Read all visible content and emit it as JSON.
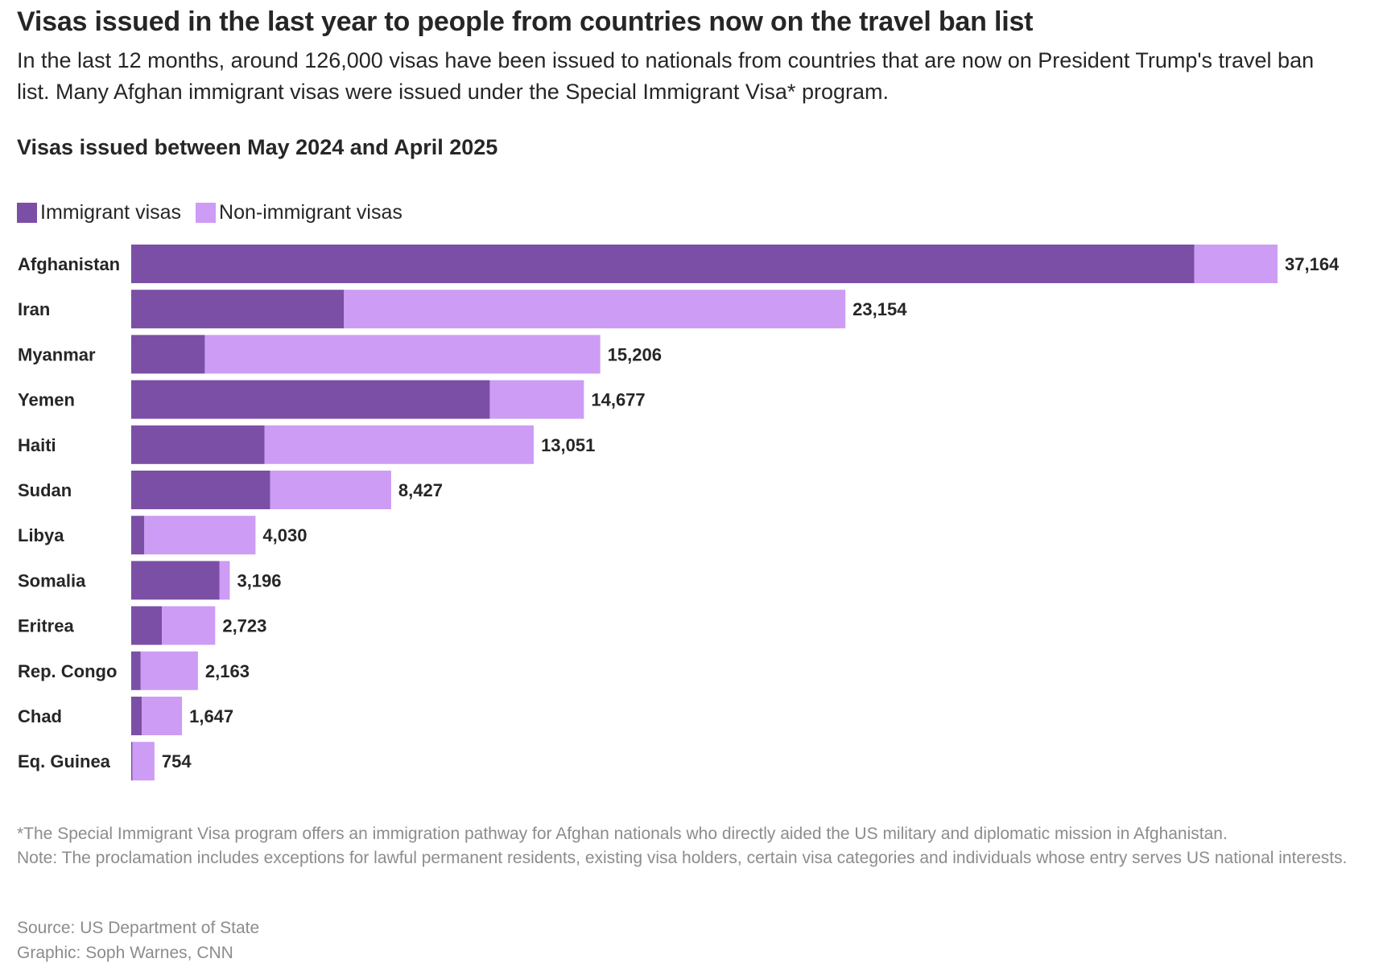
{
  "title": "Visas issued in the last year to people from countries now on the travel ban list",
  "subtitle": "In the last 12 months, around 126,000 visas have been issued to nationals from countries that are now on President Trump's travel ban list. Many Afghan immigrant visas were issued under the Special Immigrant Visa* program.",
  "chart_heading": "Visas issued between May 2024 and April 2025",
  "legend": {
    "immigrant": "Immigrant visas",
    "non_immigrant": "Non-immigrant visas"
  },
  "colors": {
    "immigrant": "#7b4fa6",
    "non_immigrant": "#cd9cf4",
    "text": "#262626",
    "muted": "#8c8c8c"
  },
  "chart_data": {
    "type": "bar",
    "orientation": "horizontal",
    "stacked": true,
    "categories": [
      "Afghanistan",
      "Iran",
      "Myanmar",
      "Yemen",
      "Haiti",
      "Sudan",
      "Libya",
      "Somalia",
      "Eritrea",
      "Rep. Congo",
      "Chad",
      "Eq. Guinea"
    ],
    "series": [
      {
        "name": "Immigrant visas",
        "values": [
          34466,
          6897,
          2386,
          11625,
          4320,
          4506,
          424,
          2865,
          992,
          308,
          340,
          38
        ]
      },
      {
        "name": "Non-immigrant visas",
        "values": [
          2698,
          16257,
          12820,
          3052,
          8731,
          3921,
          3606,
          331,
          1731,
          1855,
          1307,
          716
        ]
      }
    ],
    "totals": [
      37164,
      23154,
      15206,
      14677,
      13051,
      8427,
      4030,
      3196,
      2723,
      2163,
      1647,
      754
    ],
    "total_labels": [
      "37,164",
      "23,154",
      "15,206",
      "14,677",
      "13,051",
      "8,427",
      "4,030",
      "3,196",
      "2,723",
      "2,163",
      "1,647",
      "754"
    ],
    "xlim": [
      0,
      37164
    ],
    "grid": false,
    "legend_position": "top-left"
  },
  "footnote": {
    "line1": "*The Special Immigrant Visa program offers an immigration pathway for Afghan nationals who directly aided the US military and diplomatic mission in Afghanistan.",
    "line2": "Note: The proclamation includes exceptions for lawful permanent residents, existing visa holders, certain visa categories and individuals whose entry serves US national interests."
  },
  "source": {
    "line1": "Source: US Department of State",
    "line2": "Graphic: Soph Warnes, CNN"
  }
}
